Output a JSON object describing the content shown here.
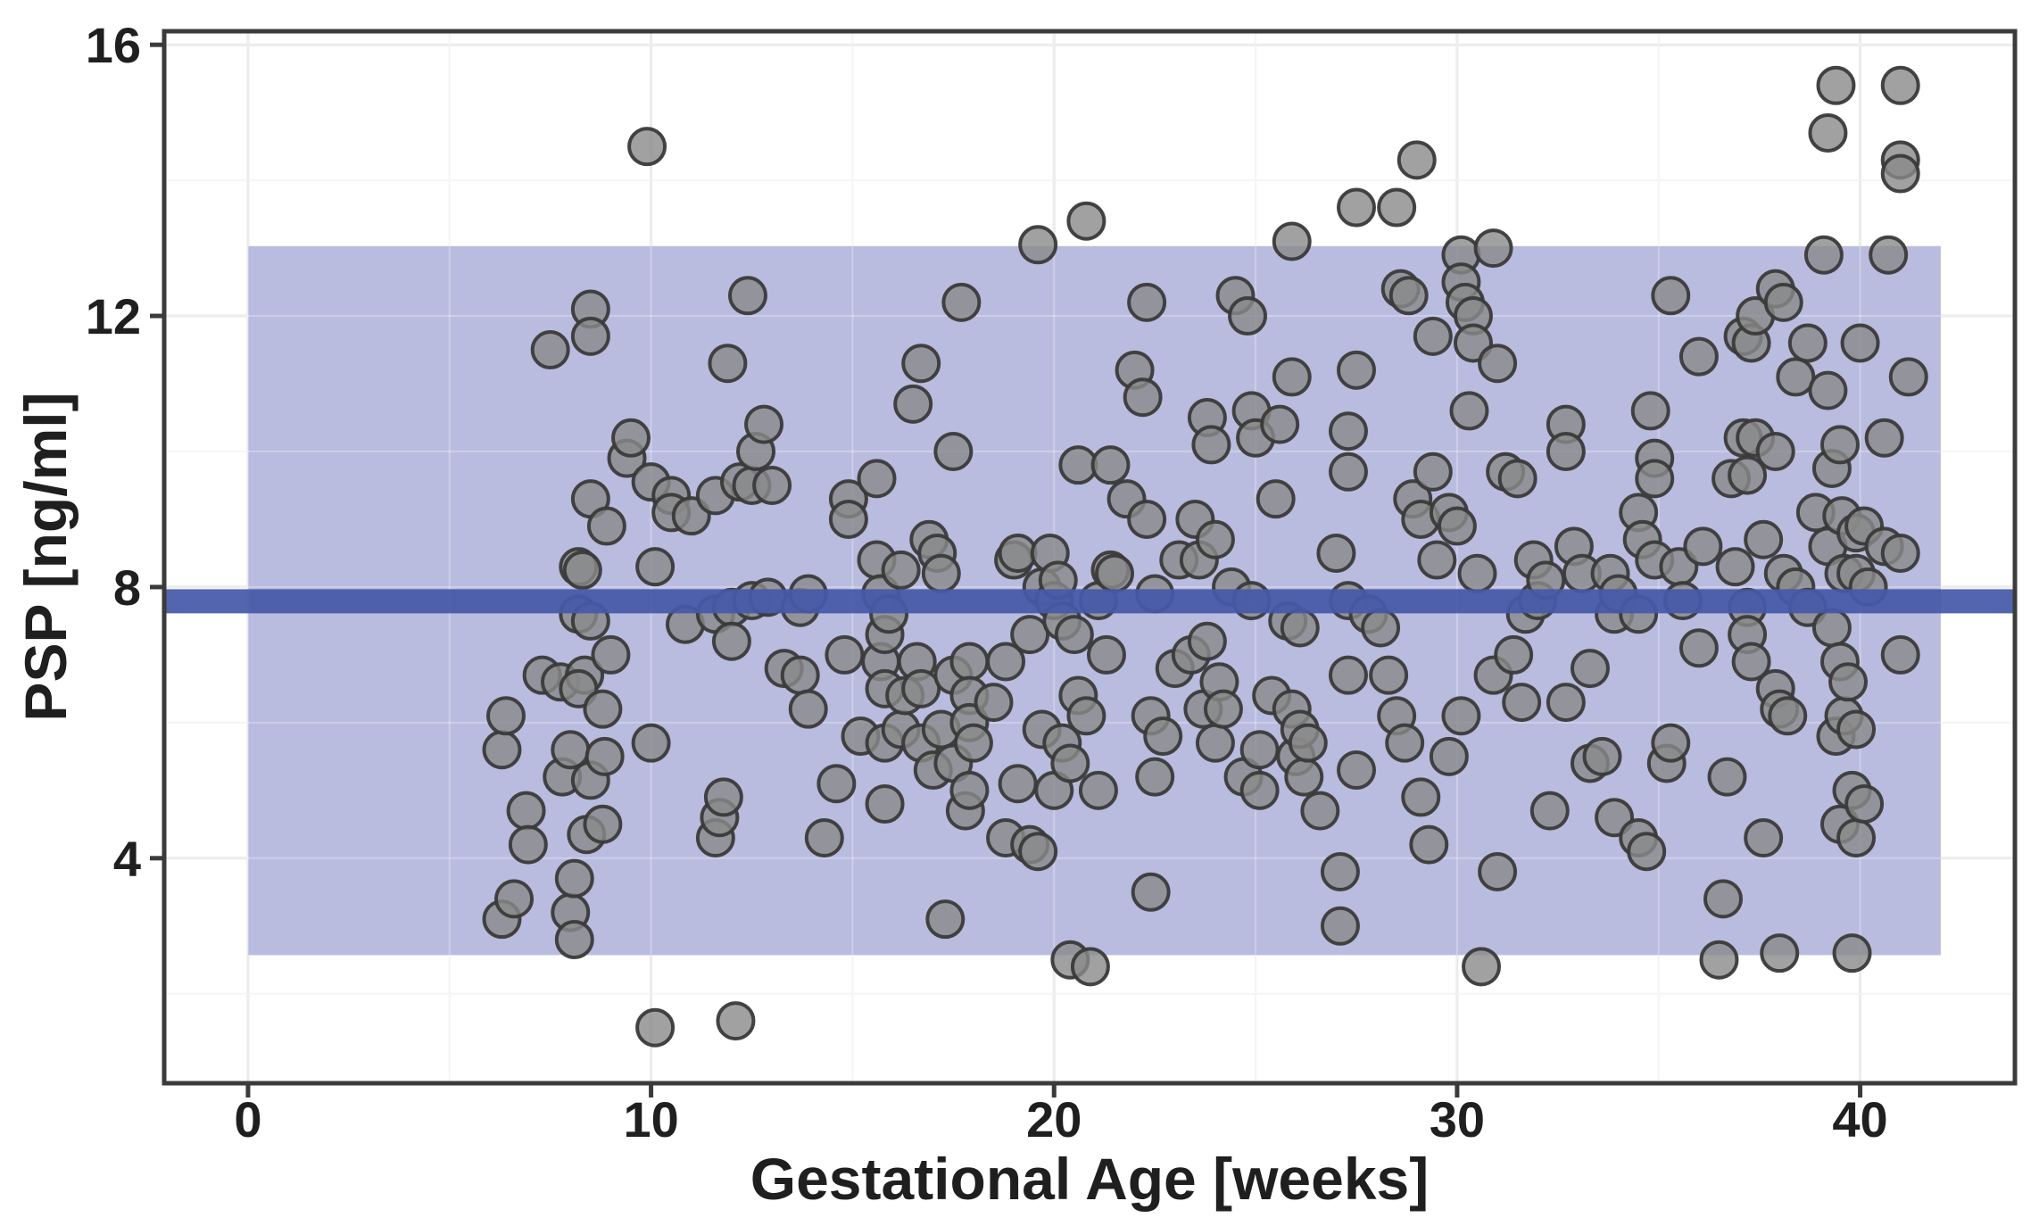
{
  "figure": {
    "kind": "scatter plot with reference band and mean line",
    "background": "#ffffff"
  },
  "colors": {
    "band": "#b9bcdf",
    "reference_line": "#4659a8",
    "point_fill": "#8a8a8a",
    "point_fill_opacity": 0.8,
    "point_stroke": "#3a3a3a",
    "point_stroke_opacity": 0.95,
    "grid_major": "#e7e7e7",
    "grid_minor": "#f2f2f2",
    "grid_over_band": "rgba(255,255,255,0.28)",
    "axis_frame": "#3b3b3b",
    "text": "#1f1f1f",
    "background": "#ffffff"
  },
  "chart_data": {
    "type": "scatter",
    "title": "",
    "xlabel": "Gestational Age [weeks]",
    "ylabel": "PSP [ng/ml]",
    "xlim": [
      -2.08,
      43.84
    ],
    "ylim": [
      0.68,
      16.2
    ],
    "x_ticks": [
      0,
      10,
      20,
      30,
      40
    ],
    "y_ticks": [
      4,
      8,
      12,
      16
    ],
    "x_minor_ticks": [
      5,
      15,
      25,
      35
    ],
    "y_minor_ticks": [
      2,
      6,
      10,
      14
    ],
    "grid": "on",
    "legend": "none",
    "reference_band": {
      "x0": 0,
      "x1": 42,
      "y0": 2.57,
      "y1": 13.03
    },
    "reference_line": {
      "y": 7.79
    },
    "points": [
      [
        6.3,
        5.6
      ],
      [
        6.4,
        6.1
      ],
      [
        6.3,
        3.1
      ],
      [
        6.6,
        3.4
      ],
      [
        6.9,
        4.7
      ],
      [
        6.95,
        4.2
      ],
      [
        7.3,
        6.7
      ],
      [
        7.5,
        11.5
      ],
      [
        7.75,
        6.6
      ],
      [
        7.8,
        5.2
      ],
      [
        8.0,
        5.6
      ],
      [
        8.0,
        3.2
      ],
      [
        8.1,
        3.7
      ],
      [
        8.1,
        2.8
      ],
      [
        8.2,
        8.3
      ],
      [
        8.3,
        8.25
      ],
      [
        8.2,
        7.6
      ],
      [
        8.5,
        7.5
      ],
      [
        8.35,
        6.7
      ],
      [
        8.2,
        6.5
      ],
      [
        8.4,
        4.35
      ],
      [
        8.5,
        5.15
      ],
      [
        8.5,
        12.1
      ],
      [
        8.5,
        11.7
      ],
      [
        8.5,
        9.3
      ],
      [
        8.8,
        6.2
      ],
      [
        8.85,
        5.5
      ],
      [
        8.8,
        4.5
      ],
      [
        8.9,
        8.9
      ],
      [
        9.0,
        7.0
      ],
      [
        9.4,
        9.9
      ],
      [
        9.5,
        10.2
      ],
      [
        9.9,
        14.5
      ],
      [
        10.0,
        9.55
      ],
      [
        10.0,
        5.7
      ],
      [
        10.1,
        8.3
      ],
      [
        10.1,
        1.5
      ],
      [
        10.5,
        9.35
      ],
      [
        10.5,
        9.1
      ],
      [
        10.85,
        7.45
      ],
      [
        11.0,
        9.05
      ],
      [
        11.6,
        9.35
      ],
      [
        11.6,
        7.6
      ],
      [
        11.6,
        4.3
      ],
      [
        11.7,
        4.6
      ],
      [
        11.8,
        4.9
      ],
      [
        11.9,
        11.3
      ],
      [
        12.0,
        7.7
      ],
      [
        12.0,
        7.2
      ],
      [
        12.1,
        1.6
      ],
      [
        12.2,
        9.55
      ],
      [
        12.4,
        12.3
      ],
      [
        12.5,
        9.5
      ],
      [
        12.5,
        7.8
      ],
      [
        12.6,
        10.0
      ],
      [
        12.8,
        10.4
      ],
      [
        12.9,
        7.85
      ],
      [
        13.0,
        9.5
      ],
      [
        13.3,
        6.8
      ],
      [
        13.7,
        6.7
      ],
      [
        13.7,
        7.7
      ],
      [
        13.9,
        7.9
      ],
      [
        13.9,
        6.2
      ],
      [
        14.3,
        4.3
      ],
      [
        14.6,
        5.1
      ],
      [
        14.8,
        7.0
      ],
      [
        14.9,
        9.3
      ],
      [
        14.9,
        9.0
      ],
      [
        15.2,
        5.8
      ],
      [
        15.6,
        9.6
      ],
      [
        15.6,
        8.4
      ],
      [
        15.7,
        7.9
      ],
      [
        15.7,
        6.9
      ],
      [
        15.8,
        7.3
      ],
      [
        15.8,
        6.5
      ],
      [
        15.8,
        5.7
      ],
      [
        15.8,
        4.8
      ],
      [
        15.9,
        7.6
      ],
      [
        16.2,
        8.25
      ],
      [
        16.2,
        5.9
      ],
      [
        16.3,
        6.4
      ],
      [
        16.5,
        10.7
      ],
      [
        16.6,
        6.9
      ],
      [
        16.7,
        11.3
      ],
      [
        16.7,
        6.5
      ],
      [
        16.7,
        5.7
      ],
      [
        16.9,
        8.7
      ],
      [
        17.0,
        5.3
      ],
      [
        17.1,
        8.5
      ],
      [
        17.2,
        8.2
      ],
      [
        17.2,
        5.9
      ],
      [
        17.3,
        3.1
      ],
      [
        17.5,
        10.0
      ],
      [
        17.5,
        6.7
      ],
      [
        17.5,
        5.4
      ],
      [
        17.7,
        12.2
      ],
      [
        17.8,
        4.7
      ],
      [
        17.9,
        6.9
      ],
      [
        17.9,
        6.4
      ],
      [
        17.9,
        6.0
      ],
      [
        17.9,
        5.0
      ],
      [
        18.0,
        5.7
      ],
      [
        18.5,
        6.3
      ],
      [
        18.8,
        6.9
      ],
      [
        18.8,
        4.3
      ],
      [
        19.0,
        8.4
      ],
      [
        19.1,
        8.5
      ],
      [
        19.1,
        5.1
      ],
      [
        19.4,
        7.3
      ],
      [
        19.4,
        4.2
      ],
      [
        19.6,
        13.05
      ],
      [
        19.6,
        4.1
      ],
      [
        19.7,
        8.0
      ],
      [
        19.7,
        5.9
      ],
      [
        19.9,
        8.5
      ],
      [
        20.0,
        7.8
      ],
      [
        20.0,
        5.0
      ],
      [
        20.1,
        8.1
      ],
      [
        20.2,
        7.5
      ],
      [
        20.2,
        5.7
      ],
      [
        20.4,
        5.4
      ],
      [
        20.4,
        2.5
      ],
      [
        20.5,
        7.3
      ],
      [
        20.6,
        9.8
      ],
      [
        20.6,
        6.4
      ],
      [
        20.8,
        13.4
      ],
      [
        20.8,
        6.1
      ],
      [
        20.9,
        2.4
      ],
      [
        21.1,
        7.8
      ],
      [
        21.1,
        5.0
      ],
      [
        21.3,
        7.0
      ],
      [
        21.4,
        9.8
      ],
      [
        21.4,
        8.25
      ],
      [
        21.5,
        8.2
      ],
      [
        21.8,
        9.3
      ],
      [
        22.0,
        11.2
      ],
      [
        22.2,
        10.8
      ],
      [
        22.3,
        12.2
      ],
      [
        22.3,
        9.0
      ],
      [
        22.4,
        6.1
      ],
      [
        22.4,
        3.5
      ],
      [
        22.5,
        7.9
      ],
      [
        22.5,
        5.2
      ],
      [
        22.7,
        5.8
      ],
      [
        23.0,
        6.8
      ],
      [
        23.1,
        8.4
      ],
      [
        23.4,
        7.0
      ],
      [
        23.5,
        9.0
      ],
      [
        23.6,
        8.4
      ],
      [
        23.7,
        6.2
      ],
      [
        23.8,
        10.5
      ],
      [
        23.8,
        7.2
      ],
      [
        23.9,
        10.1
      ],
      [
        24.0,
        8.7
      ],
      [
        24.0,
        5.7
      ],
      [
        24.1,
        6.6
      ],
      [
        24.2,
        6.2
      ],
      [
        24.4,
        8.0
      ],
      [
        24.5,
        12.3
      ],
      [
        24.7,
        5.2
      ],
      [
        24.8,
        12.0
      ],
      [
        24.9,
        10.6
      ],
      [
        24.9,
        7.8
      ],
      [
        25.0,
        10.2
      ],
      [
        25.1,
        5.6
      ],
      [
        25.1,
        5.0
      ],
      [
        25.4,
        6.4
      ],
      [
        25.5,
        9.3
      ],
      [
        25.6,
        10.4
      ],
      [
        25.8,
        7.5
      ],
      [
        25.9,
        13.1
      ],
      [
        25.9,
        11.1
      ],
      [
        25.9,
        6.2
      ],
      [
        26.0,
        5.5
      ],
      [
        26.1,
        7.4
      ],
      [
        26.1,
        5.9
      ],
      [
        26.2,
        5.2
      ],
      [
        26.3,
        5.7
      ],
      [
        26.6,
        4.7
      ],
      [
        27.0,
        8.5
      ],
      [
        27.1,
        3.8
      ],
      [
        27.1,
        3.0
      ],
      [
        27.3,
        10.3
      ],
      [
        27.3,
        9.7
      ],
      [
        27.3,
        7.8
      ],
      [
        27.3,
        6.7
      ],
      [
        27.5,
        13.6
      ],
      [
        27.5,
        11.2
      ],
      [
        27.5,
        5.3
      ],
      [
        27.8,
        7.6
      ],
      [
        28.1,
        7.4
      ],
      [
        28.3,
        6.7
      ],
      [
        28.5,
        13.6
      ],
      [
        28.5,
        6.1
      ],
      [
        28.6,
        12.4
      ],
      [
        28.7,
        5.7
      ],
      [
        28.8,
        12.3
      ],
      [
        28.9,
        9.3
      ],
      [
        29.0,
        14.3
      ],
      [
        29.1,
        9.0
      ],
      [
        29.1,
        4.9
      ],
      [
        29.3,
        4.2
      ],
      [
        29.4,
        11.7
      ],
      [
        29.4,
        9.7
      ],
      [
        29.5,
        8.4
      ],
      [
        29.8,
        9.1
      ],
      [
        29.8,
        5.5
      ],
      [
        30.0,
        8.9
      ],
      [
        30.1,
        12.9
      ],
      [
        30.1,
        12.5
      ],
      [
        30.1,
        6.1
      ],
      [
        30.2,
        12.2
      ],
      [
        30.3,
        10.6
      ],
      [
        30.4,
        12.0
      ],
      [
        30.4,
        11.6
      ],
      [
        30.5,
        8.2
      ],
      [
        30.6,
        2.4
      ],
      [
        30.9,
        13.0
      ],
      [
        30.9,
        6.7
      ],
      [
        31.0,
        11.3
      ],
      [
        31.0,
        3.8
      ],
      [
        31.2,
        9.7
      ],
      [
        31.4,
        7.0
      ],
      [
        31.5,
        9.6
      ],
      [
        31.6,
        6.3
      ],
      [
        31.7,
        7.6
      ],
      [
        31.9,
        8.4
      ],
      [
        32.0,
        7.8
      ],
      [
        32.2,
        8.1
      ],
      [
        32.3,
        4.7
      ],
      [
        32.7,
        10.4
      ],
      [
        32.7,
        10.0
      ],
      [
        32.7,
        6.3
      ],
      [
        32.9,
        8.6
      ],
      [
        33.1,
        8.2
      ],
      [
        33.3,
        6.8
      ],
      [
        33.3,
        5.4
      ],
      [
        33.6,
        5.5
      ],
      [
        33.8,
        8.2
      ],
      [
        33.9,
        7.6
      ],
      [
        33.9,
        4.6
      ],
      [
        34.0,
        7.9
      ],
      [
        34.5,
        9.1
      ],
      [
        34.5,
        7.6
      ],
      [
        34.5,
        4.3
      ],
      [
        34.6,
        8.7
      ],
      [
        34.7,
        4.1
      ],
      [
        34.8,
        10.6
      ],
      [
        34.9,
        9.9
      ],
      [
        34.9,
        9.6
      ],
      [
        34.9,
        8.4
      ],
      [
        35.2,
        5.4
      ],
      [
        35.3,
        12.3
      ],
      [
        35.3,
        5.7
      ],
      [
        35.5,
        8.3
      ],
      [
        35.6,
        7.8
      ],
      [
        36.0,
        11.4
      ],
      [
        36.0,
        7.1
      ],
      [
        36.1,
        8.6
      ],
      [
        36.5,
        2.5
      ],
      [
        36.6,
        3.4
      ],
      [
        36.7,
        5.2
      ],
      [
        36.8,
        9.6
      ],
      [
        36.9,
        8.3
      ],
      [
        37.1,
        11.7
      ],
      [
        37.1,
        10.2
      ],
      [
        37.2,
        9.65
      ],
      [
        37.2,
        7.7
      ],
      [
        37.2,
        7.3
      ],
      [
        37.3,
        11.6
      ],
      [
        37.3,
        6.9
      ],
      [
        37.4,
        12.0
      ],
      [
        37.4,
        10.2
      ],
      [
        37.6,
        8.7
      ],
      [
        37.6,
        4.3
      ],
      [
        37.9,
        12.4
      ],
      [
        37.9,
        10.0
      ],
      [
        37.9,
        6.5
      ],
      [
        38.0,
        6.2
      ],
      [
        38.0,
        2.6
      ],
      [
        38.1,
        12.2
      ],
      [
        38.1,
        8.2
      ],
      [
        38.2,
        6.1
      ],
      [
        38.4,
        11.1
      ],
      [
        38.4,
        8.0
      ],
      [
        38.7,
        11.6
      ],
      [
        38.7,
        7.7
      ],
      [
        38.9,
        9.1
      ],
      [
        39.1,
        12.9
      ],
      [
        39.2,
        14.7
      ],
      [
        39.2,
        10.9
      ],
      [
        39.2,
        8.6
      ],
      [
        39.3,
        9.75
      ],
      [
        39.3,
        7.4
      ],
      [
        39.4,
        15.4
      ],
      [
        39.4,
        5.8
      ],
      [
        39.5,
        10.1
      ],
      [
        39.5,
        6.9
      ],
      [
        39.5,
        4.5
      ],
      [
        39.55,
        9.05
      ],
      [
        39.6,
        8.2
      ],
      [
        39.6,
        6.1
      ],
      [
        39.7,
        6.6
      ],
      [
        39.8,
        5.0
      ],
      [
        39.8,
        2.6
      ],
      [
        39.9,
        8.8
      ],
      [
        39.9,
        8.2
      ],
      [
        39.9,
        5.9
      ],
      [
        39.9,
        4.3
      ],
      [
        40.0,
        11.6
      ],
      [
        40.1,
        8.9
      ],
      [
        40.1,
        4.8
      ],
      [
        40.2,
        8.0
      ],
      [
        40.6,
        10.2
      ],
      [
        40.6,
        8.6
      ],
      [
        40.7,
        12.9
      ],
      [
        41.0,
        15.4
      ],
      [
        41.0,
        14.3
      ],
      [
        41.0,
        14.1
      ],
      [
        41.0,
        8.5
      ],
      [
        41.0,
        7.0
      ],
      [
        41.2,
        11.1
      ]
    ]
  }
}
